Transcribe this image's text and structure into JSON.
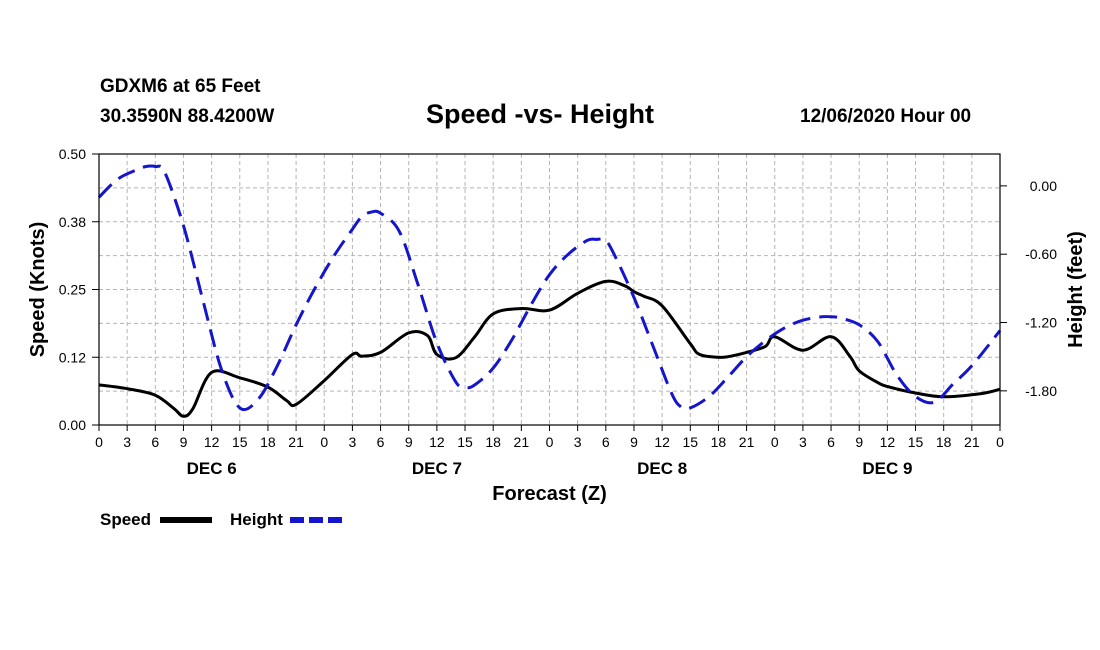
{
  "header": {
    "station": "GDXM6 at 65 Feet",
    "coords": "30.3590N 88.4200W",
    "title": "Speed -vs- Height",
    "runtime": "12/06/2020 Hour 00"
  },
  "chart_data": {
    "type": "line",
    "title": "Speed -vs- Height",
    "xlabel": "Forecast (Z)",
    "ylabel": "Speed (Knots)",
    "y2label": "Height (feet)",
    "x_unit": "forecast hour",
    "xlim": [
      0,
      96
    ],
    "ylim": [
      0,
      0.5
    ],
    "y2lim": [
      -2.1,
      0.28
    ],
    "grid": true,
    "x_tick_labels": [
      "0",
      "3",
      "6",
      "9",
      "12",
      "15",
      "18",
      "21",
      "0",
      "3",
      "6",
      "9",
      "12",
      "15",
      "18",
      "21",
      "0",
      "3",
      "6",
      "9",
      "12",
      "15",
      "18",
      "21",
      "0",
      "3",
      "6",
      "9",
      "12",
      "15",
      "18",
      "21",
      "0"
    ],
    "y_tick_labels": [
      "0.00",
      "0.12",
      "0.25",
      "0.38",
      "0.50"
    ],
    "y_tick_values": [
      0,
      0.125,
      0.25,
      0.375,
      0.5
    ],
    "y2_tick_labels": [
      "-1.80",
      "-1.20",
      "-0.60",
      "0.00"
    ],
    "y2_tick_values": [
      -1.8,
      -1.2,
      -0.6,
      0.0
    ],
    "day_labels": [
      {
        "label": "DEC 6",
        "hour": 12
      },
      {
        "label": "DEC 7",
        "hour": 36
      },
      {
        "label": "DEC 8",
        "hour": 60
      },
      {
        "label": "DEC 9",
        "hour": 84
      }
    ],
    "legend": {
      "placement": "bottom-left"
    },
    "series": [
      {
        "name": "Speed",
        "axis": "left",
        "color": "#000000",
        "style": "solid",
        "x": [
          0,
          3,
          6,
          8,
          9,
          10,
          12,
          15,
          18,
          20,
          21,
          24,
          27,
          28,
          30,
          33,
          35,
          36,
          38,
          40,
          42,
          45,
          48,
          51,
          54,
          56,
          57,
          58,
          60,
          63,
          64,
          66,
          67,
          69,
          71,
          72,
          75,
          78,
          80,
          81,
          83,
          84,
          87,
          90,
          94,
          96
        ],
        "y": [
          0.074,
          0.067,
          0.055,
          0.03,
          0.016,
          0.03,
          0.097,
          0.087,
          0.07,
          0.045,
          0.038,
          0.082,
          0.13,
          0.127,
          0.134,
          0.17,
          0.165,
          0.13,
          0.124,
          0.162,
          0.205,
          0.215,
          0.212,
          0.243,
          0.265,
          0.257,
          0.246,
          0.238,
          0.22,
          0.15,
          0.13,
          0.125,
          0.126,
          0.134,
          0.145,
          0.163,
          0.138,
          0.163,
          0.127,
          0.1,
          0.078,
          0.071,
          0.059,
          0.052,
          0.058,
          0.066
        ]
      },
      {
        "name": "Height",
        "axis": "right",
        "color": "#1515cc",
        "style": "dashed",
        "x": [
          0,
          2,
          4,
          5,
          6,
          7,
          9,
          11,
          13,
          15,
          17,
          19,
          21,
          23,
          25,
          27,
          28,
          29,
          30,
          32,
          34,
          36,
          38,
          39,
          40,
          42,
          44,
          46,
          48,
          50,
          52,
          53,
          54,
          55,
          57,
          59,
          61,
          62,
          63,
          65,
          67,
          69,
          71,
          73,
          75,
          77,
          78,
          79,
          81,
          83,
          85,
          87,
          89,
          91,
          93,
          96
        ],
        "y": [
          -0.1,
          0.06,
          0.14,
          0.17,
          0.17,
          0.12,
          -0.35,
          -0.98,
          -1.6,
          -1.95,
          -1.87,
          -1.58,
          -1.22,
          -0.9,
          -0.62,
          -0.38,
          -0.27,
          -0.23,
          -0.24,
          -0.4,
          -0.87,
          -1.38,
          -1.72,
          -1.77,
          -1.75,
          -1.6,
          -1.35,
          -1.05,
          -0.78,
          -0.6,
          -0.48,
          -0.47,
          -0.48,
          -0.62,
          -0.98,
          -1.4,
          -1.82,
          -1.94,
          -1.95,
          -1.85,
          -1.68,
          -1.5,
          -1.36,
          -1.25,
          -1.18,
          -1.15,
          -1.15,
          -1.16,
          -1.22,
          -1.37,
          -1.66,
          -1.85,
          -1.9,
          -1.74,
          -1.58,
          -1.27
        ]
      }
    ]
  }
}
